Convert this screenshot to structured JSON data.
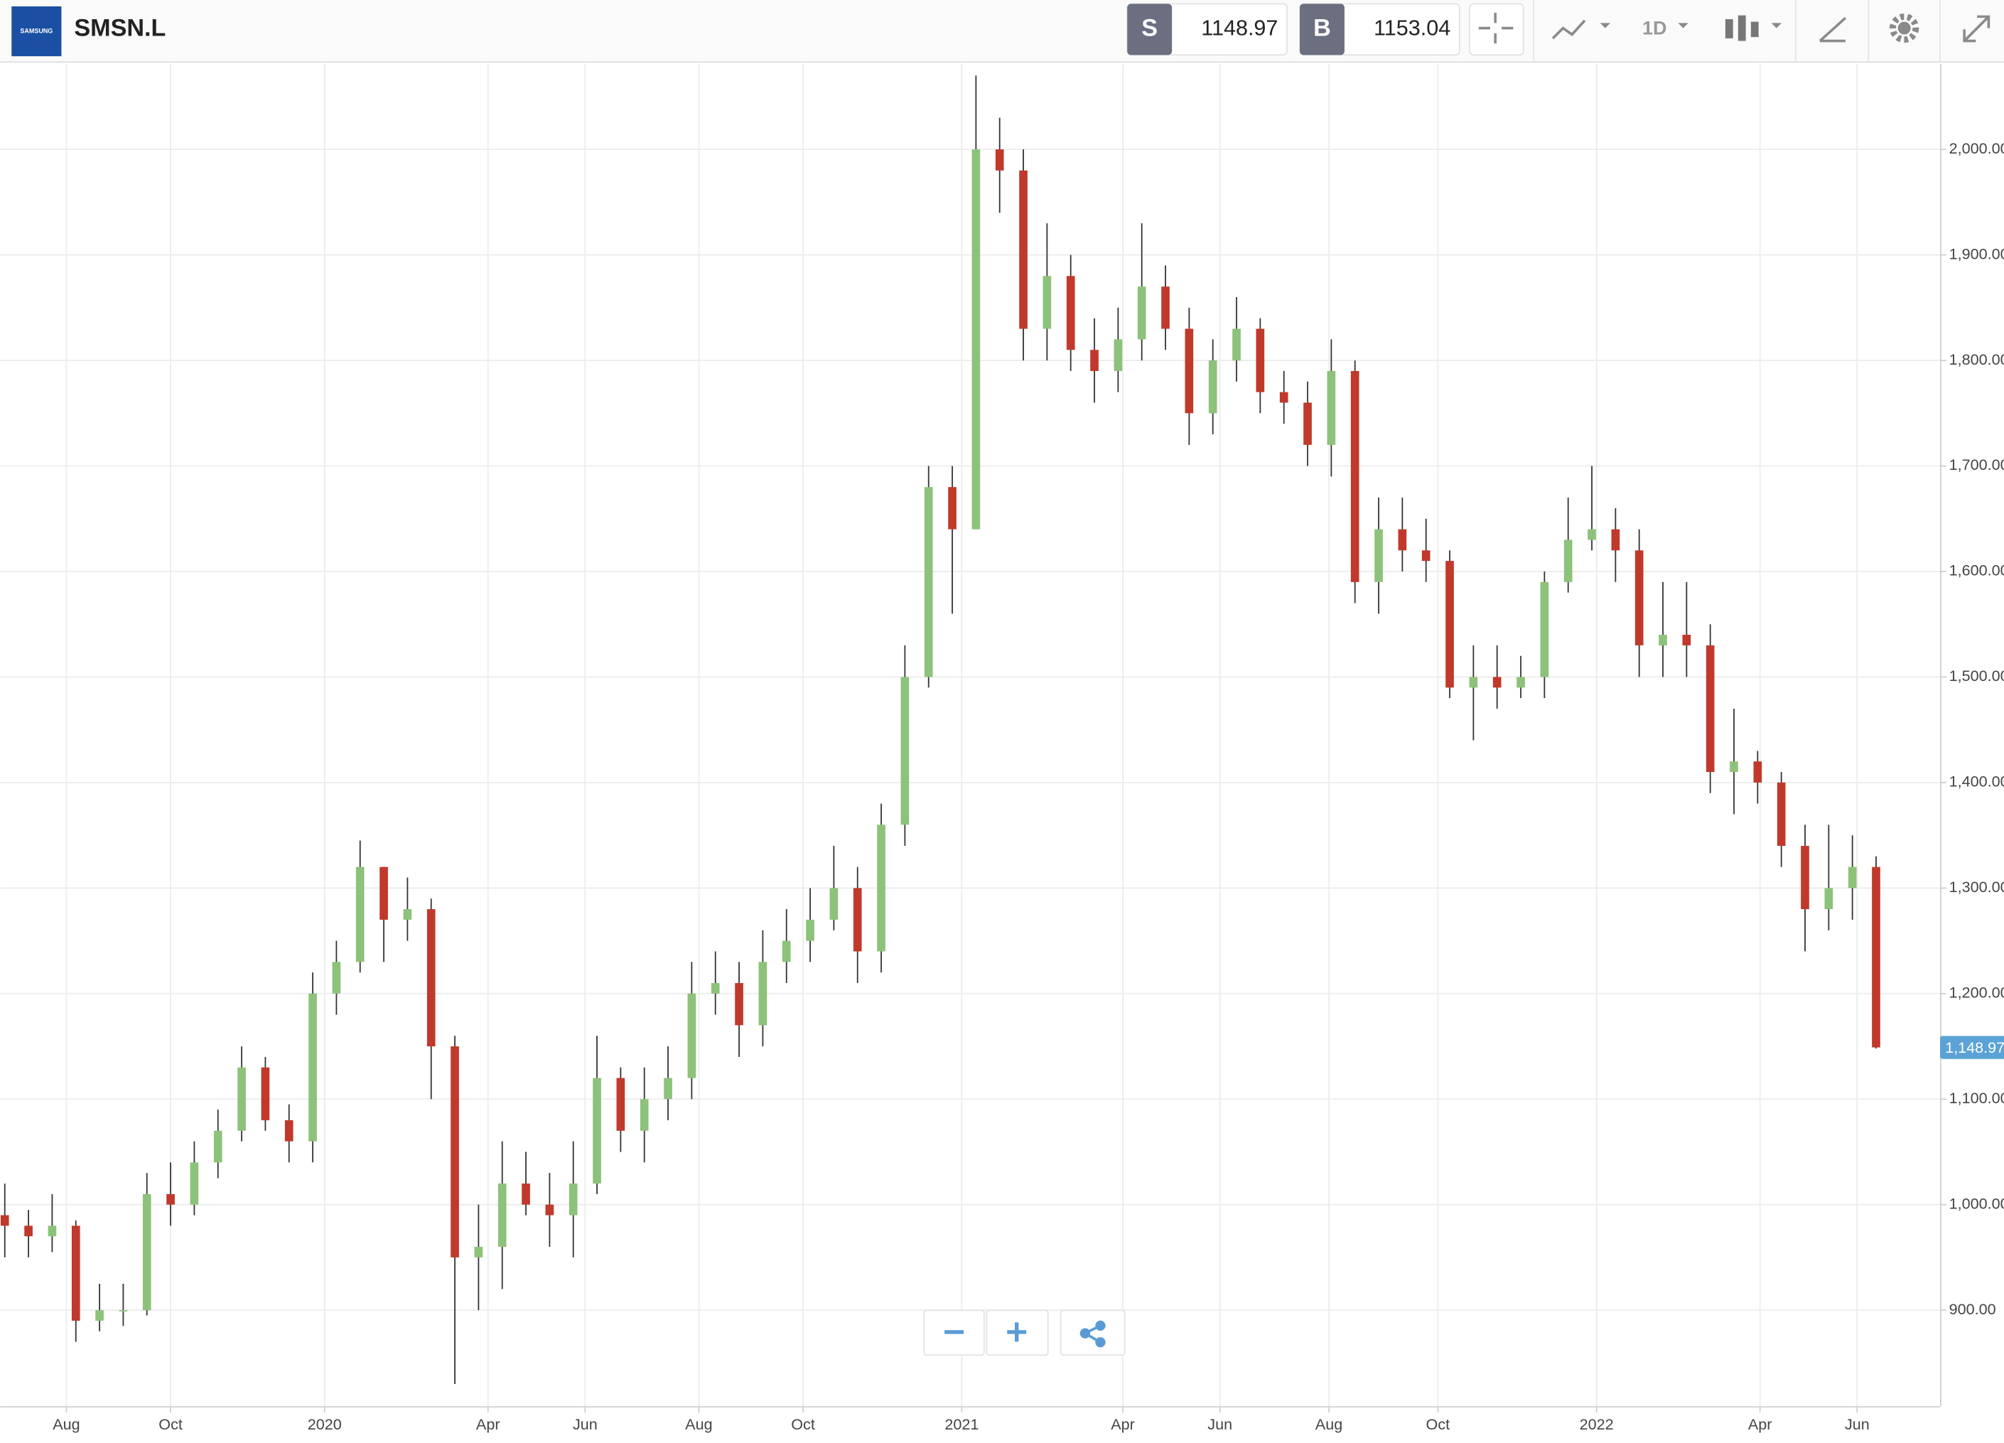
{
  "toolbar": {
    "logo": "SAMSUNG",
    "symbol": "SMSN.L",
    "sell_label": "S",
    "sell": 1148.97,
    "buy_label": "B",
    "buy": 1153.04,
    "interval": "1D"
  },
  "chart_data": {
    "type": "candlestick",
    "open": [
      990,
      980,
      970,
      980,
      890,
      900,
      900,
      1010,
      1000,
      1040,
      1070,
      1130,
      1080,
      1060,
      1200,
      1230,
      1320,
      1270,
      1280,
      1150,
      950,
      960,
      1020,
      1000,
      990,
      1020,
      1120,
      1070,
      1100,
      1120,
      1200,
      1210,
      1170,
      1230,
      1250,
      1270,
      1300,
      1240,
      1360,
      1500,
      1680,
      1640,
      2000,
      1980,
      1830,
      1880,
      1810,
      1790,
      1820,
      1870,
      1830,
      1750,
      1800,
      1830,
      1770,
      1760,
      1720,
      1790,
      1590,
      1640,
      1620,
      1610,
      1490,
      1500,
      1490,
      1500,
      1590,
      1630,
      1640,
      1620,
      1530,
      1540,
      1530,
      1410,
      1420,
      1400,
      1340,
      1280,
      1300,
      1320
    ],
    "high": [
      1020,
      995,
      1010,
      985,
      925,
      925,
      1030,
      1040,
      1060,
      1090,
      1150,
      1140,
      1095,
      1220,
      1250,
      1345,
      1320,
      1310,
      1290,
      1160,
      1000,
      1060,
      1050,
      1030,
      1060,
      1160,
      1130,
      1130,
      1150,
      1230,
      1240,
      1230,
      1260,
      1280,
      1300,
      1340,
      1320,
      1380,
      1530,
      1700,
      1700,
      2070,
      2030,
      2000,
      1930,
      1900,
      1840,
      1850,
      1930,
      1890,
      1850,
      1820,
      1860,
      1840,
      1790,
      1780,
      1820,
      1800,
      1670,
      1670,
      1650,
      1620,
      1530,
      1530,
      1520,
      1600,
      1670,
      1700,
      1660,
      1640,
      1590,
      1590,
      1550,
      1470,
      1430,
      1410,
      1360,
      1360,
      1350,
      1330
    ],
    "low": [
      950,
      950,
      955,
      870,
      880,
      885,
      895,
      980,
      990,
      1025,
      1060,
      1070,
      1040,
      1040,
      1180,
      1220,
      1230,
      1250,
      1100,
      830,
      900,
      920,
      990,
      960,
      950,
      1010,
      1050,
      1040,
      1080,
      1100,
      1180,
      1140,
      1150,
      1210,
      1230,
      1260,
      1210,
      1220,
      1340,
      1490,
      1560,
      1640,
      1940,
      1800,
      1800,
      1790,
      1760,
      1770,
      1800,
      1810,
      1720,
      1730,
      1780,
      1750,
      1740,
      1700,
      1690,
      1570,
      1560,
      1600,
      1590,
      1480,
      1440,
      1470,
      1480,
      1480,
      1580,
      1620,
      1590,
      1500,
      1500,
      1500,
      1390,
      1370,
      1380,
      1320,
      1240,
      1260,
      1270,
      1148
    ],
    "close": [
      980,
      970,
      980,
      890,
      900,
      900,
      1010,
      1000,
      1040,
      1070,
      1130,
      1080,
      1060,
      1200,
      1230,
      1320,
      1270,
      1280,
      1150,
      950,
      960,
      1020,
      1000,
      990,
      1020,
      1120,
      1070,
      1100,
      1120,
      1200,
      1210,
      1170,
      1230,
      1250,
      1270,
      1300,
      1240,
      1360,
      1500,
      1680,
      1640,
      2000,
      1980,
      1830,
      1880,
      1810,
      1790,
      1820,
      1870,
      1830,
      1750,
      1800,
      1830,
      1770,
      1760,
      1720,
      1790,
      1590,
      1640,
      1620,
      1610,
      1490,
      1500,
      1490,
      1500,
      1590,
      1630,
      1640,
      1620,
      1530,
      1540,
      1530,
      1410,
      1420,
      1400,
      1340,
      1280,
      1300,
      1320,
      1149
    ],
    "up_color": "#8dc27a",
    "down_color": "#c0392b",
    "wick_color": "#333333",
    "xlim": [
      -0.2,
      81.7
    ],
    "xticks": [
      {
        "value": 2.6,
        "label": "Aug"
      },
      {
        "value": 7.0,
        "label": "Oct"
      },
      {
        "value": 13.5,
        "label": "2020"
      },
      {
        "value": 20.4,
        "label": "Apr"
      },
      {
        "value": 24.5,
        "label": "Jun"
      },
      {
        "value": 29.3,
        "label": "Aug"
      },
      {
        "value": 33.7,
        "label": "Oct"
      },
      {
        "value": 40.4,
        "label": "2021"
      },
      {
        "value": 47.2,
        "label": "Apr"
      },
      {
        "value": 51.3,
        "label": "Jun"
      },
      {
        "value": 55.9,
        "label": "Aug"
      },
      {
        "value": 60.5,
        "label": "Oct"
      },
      {
        "value": 67.2,
        "label": "2022"
      },
      {
        "value": 74.1,
        "label": "Apr"
      },
      {
        "value": 78.2,
        "label": "Jun"
      }
    ],
    "ylim": [
      809,
      2081
    ],
    "yticks": [
      {
        "value": 900,
        "label": "900.00"
      },
      {
        "value": 1000,
        "label": "1,000.00"
      },
      {
        "value": 1100,
        "label": "1,100.00"
      },
      {
        "value": 1200,
        "label": "1,200.00"
      },
      {
        "value": 1300,
        "label": "1,300.00"
      },
      {
        "value": 1400,
        "label": "1,400.00"
      },
      {
        "value": 1500,
        "label": "1,500.00"
      },
      {
        "value": 1600,
        "label": "1,600.00"
      },
      {
        "value": 1700,
        "label": "1,700.00"
      },
      {
        "value": 1800,
        "label": "1,800.00"
      },
      {
        "value": 1900,
        "label": "1,900.00"
      },
      {
        "value": 2000,
        "label": "2,000.00"
      }
    ],
    "last_price": {
      "value": 1148.97,
      "label": "1,148.97"
    },
    "last_price_color": "#5ba3d6",
    "grid": true
  }
}
